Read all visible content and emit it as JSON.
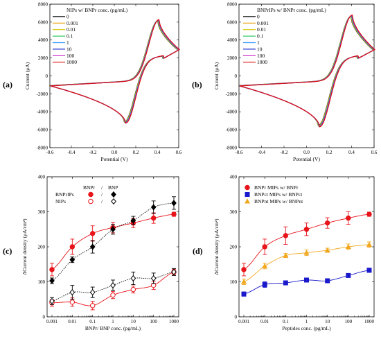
{
  "chart_data": [
    {
      "id": "a",
      "type": "line",
      "panel_label": "(a)",
      "legend_title": "NIPs w/ BNPr conc. (pg/mL)",
      "xlabel": "Potential (V)",
      "ylabel": "Current (μA)",
      "xlim": [
        -0.6,
        0.6
      ],
      "ylim": [
        -8000,
        8000
      ],
      "xticks": [
        "-0.6",
        "-0.4",
        "-0.2",
        "0.0",
        "0.2",
        "0.4",
        "0.6"
      ],
      "yticks": [
        "-8000",
        "-6000",
        "-4000",
        "-2000",
        "0",
        "2000",
        "4000",
        "6000",
        "8000"
      ],
      "series": [
        {
          "name": "0",
          "color": "#000000"
        },
        {
          "name": "0.001",
          "color": "#e8a000"
        },
        {
          "name": "0.01",
          "color": "#d4c800"
        },
        {
          "name": "0.1",
          "color": "#33cc66"
        },
        {
          "name": "1",
          "color": "#3399ff"
        },
        {
          "name": "10",
          "color": "#2233cc"
        },
        {
          "name": "100",
          "color": "#cc22cc"
        },
        {
          "name": "1000",
          "color": "#dd1111"
        }
      ],
      "cv": {
        "anodic_peak": [
          0.41,
          6200
        ],
        "cathodic_peak": [
          0.1,
          -5200
        ],
        "start": [
          -0.6,
          -1100
        ],
        "vertex": [
          0.6,
          2900
        ]
      }
    },
    {
      "id": "b",
      "type": "line",
      "panel_label": "(b)",
      "legend_title": "BNPrIPs w/ BNPr conc. (pg/mL)",
      "xlabel": "Potential (V)",
      "ylabel": "Current (μA)",
      "xlim": [
        -0.6,
        0.6
      ],
      "ylim": [
        -8000,
        8000
      ],
      "xticks": [
        "-0.6",
        "-0.4",
        "-0.2",
        "0.0",
        "0.2",
        "0.4",
        "0.6"
      ],
      "yticks": [
        "-8000",
        "-6000",
        "-4000",
        "-2000",
        "0",
        "2000",
        "4000",
        "6000",
        "8000"
      ],
      "series": [
        {
          "name": "0",
          "color": "#000000"
        },
        {
          "name": "0.001",
          "color": "#e8a000"
        },
        {
          "name": "0.01",
          "color": "#d4c800"
        },
        {
          "name": "0.1",
          "color": "#33cc66"
        },
        {
          "name": "1",
          "color": "#3399ff"
        },
        {
          "name": "10",
          "color": "#2233cc"
        },
        {
          "name": "100",
          "color": "#cc22cc"
        },
        {
          "name": "1000",
          "color": "#dd1111"
        }
      ],
      "cv": {
        "anodic_peak": [
          0.4,
          6700
        ],
        "cathodic_peak": [
          0.11,
          -5600
        ],
        "start": [
          -0.6,
          -1100
        ],
        "vertex": [
          0.6,
          2900
        ]
      }
    },
    {
      "id": "c",
      "type": "scatter",
      "panel_label": "(c)",
      "xlabel": "BNPr/ BNP conc. (pg/mL)",
      "ylabel": "ΔCurrent density (μA/cm²)",
      "xscale": "log",
      "xlim": [
        0.001,
        1000
      ],
      "ylim": [
        0,
        400
      ],
      "xticks": [
        "0.001",
        "0.01",
        "0.1",
        "1",
        "10",
        "100",
        "1000"
      ],
      "yticks": [
        "0",
        "100",
        "200",
        "300",
        "400"
      ],
      "legend": {
        "header_left": "BNPr",
        "header_sep": "/",
        "header_right": "BNP",
        "rows": [
          "BNPrIPs",
          "NIPs"
        ],
        "row_sep": "/"
      },
      "x": [
        0.001,
        0.01,
        0.1,
        1,
        10,
        100,
        1000
      ],
      "series": [
        {
          "name": "BNPrIPs w/ BNPr",
          "color": "#e8141a",
          "marker": "circle-filled",
          "values": [
            135,
            200,
            238,
            255,
            268,
            282,
            293
          ],
          "err": [
            18,
            22,
            22,
            15,
            13,
            15,
            6
          ]
        },
        {
          "name": "BNPrIPs w/ BNP",
          "color": "#000000",
          "marker": "diamond-filled",
          "values": [
            103,
            163,
            200,
            250,
            275,
            313,
            325
          ],
          "err": [
            8,
            8,
            18,
            14,
            12,
            18,
            18
          ]
        },
        {
          "name": "NIPs w/ BNPr",
          "color": "#e8141a",
          "marker": "circle-open",
          "values": [
            40,
            42,
            32,
            62,
            78,
            90,
            128
          ],
          "err": [
            10,
            12,
            12,
            10,
            10,
            12,
            8
          ]
        },
        {
          "name": "NIPs w/ BNP",
          "color": "#000000",
          "marker": "diamond-open",
          "values": [
            45,
            70,
            70,
            90,
            110,
            110,
            128
          ],
          "err": [
            10,
            20,
            15,
            15,
            18,
            15,
            10
          ]
        }
      ]
    },
    {
      "id": "d",
      "type": "scatter",
      "panel_label": "(d)",
      "xlabel": "Peptides conc. (pg/mL)",
      "ylabel": "ΔCurrent density (μA/cm²)",
      "xscale": "log",
      "xlim": [
        0.001,
        1000
      ],
      "ylim": [
        0,
        400
      ],
      "xticks": [
        "0.001",
        "0.01",
        "0.1",
        "1",
        "10",
        "100",
        "1000"
      ],
      "yticks": [
        "0",
        "100",
        "200",
        "300",
        "400"
      ],
      "x": [
        0.001,
        0.01,
        0.1,
        1,
        10,
        100,
        1000
      ],
      "series": [
        {
          "name": "BNPr MIPs w/ BNPr",
          "color": "#e8141a",
          "marker": "circle-filled",
          "values": [
            135,
            200,
            232,
            250,
            268,
            282,
            293
          ],
          "err": [
            18,
            22,
            25,
            18,
            15,
            18,
            6
          ]
        },
        {
          "name": "BNPct MIPs w/ BNPct",
          "color": "#1a1acc",
          "marker": "square-filled",
          "values": [
            65,
            92,
            97,
            105,
            103,
            118,
            133
          ],
          "err": [
            6,
            8,
            4,
            4,
            4,
            5,
            6
          ]
        },
        {
          "name": "BNPnt MIPs w/ BNPnt",
          "color": "#f0a820",
          "marker": "triangle-filled",
          "values": [
            100,
            145,
            175,
            183,
            190,
            200,
            206
          ],
          "err": [
            8,
            8,
            6,
            8,
            6,
            8,
            8
          ]
        }
      ]
    }
  ]
}
